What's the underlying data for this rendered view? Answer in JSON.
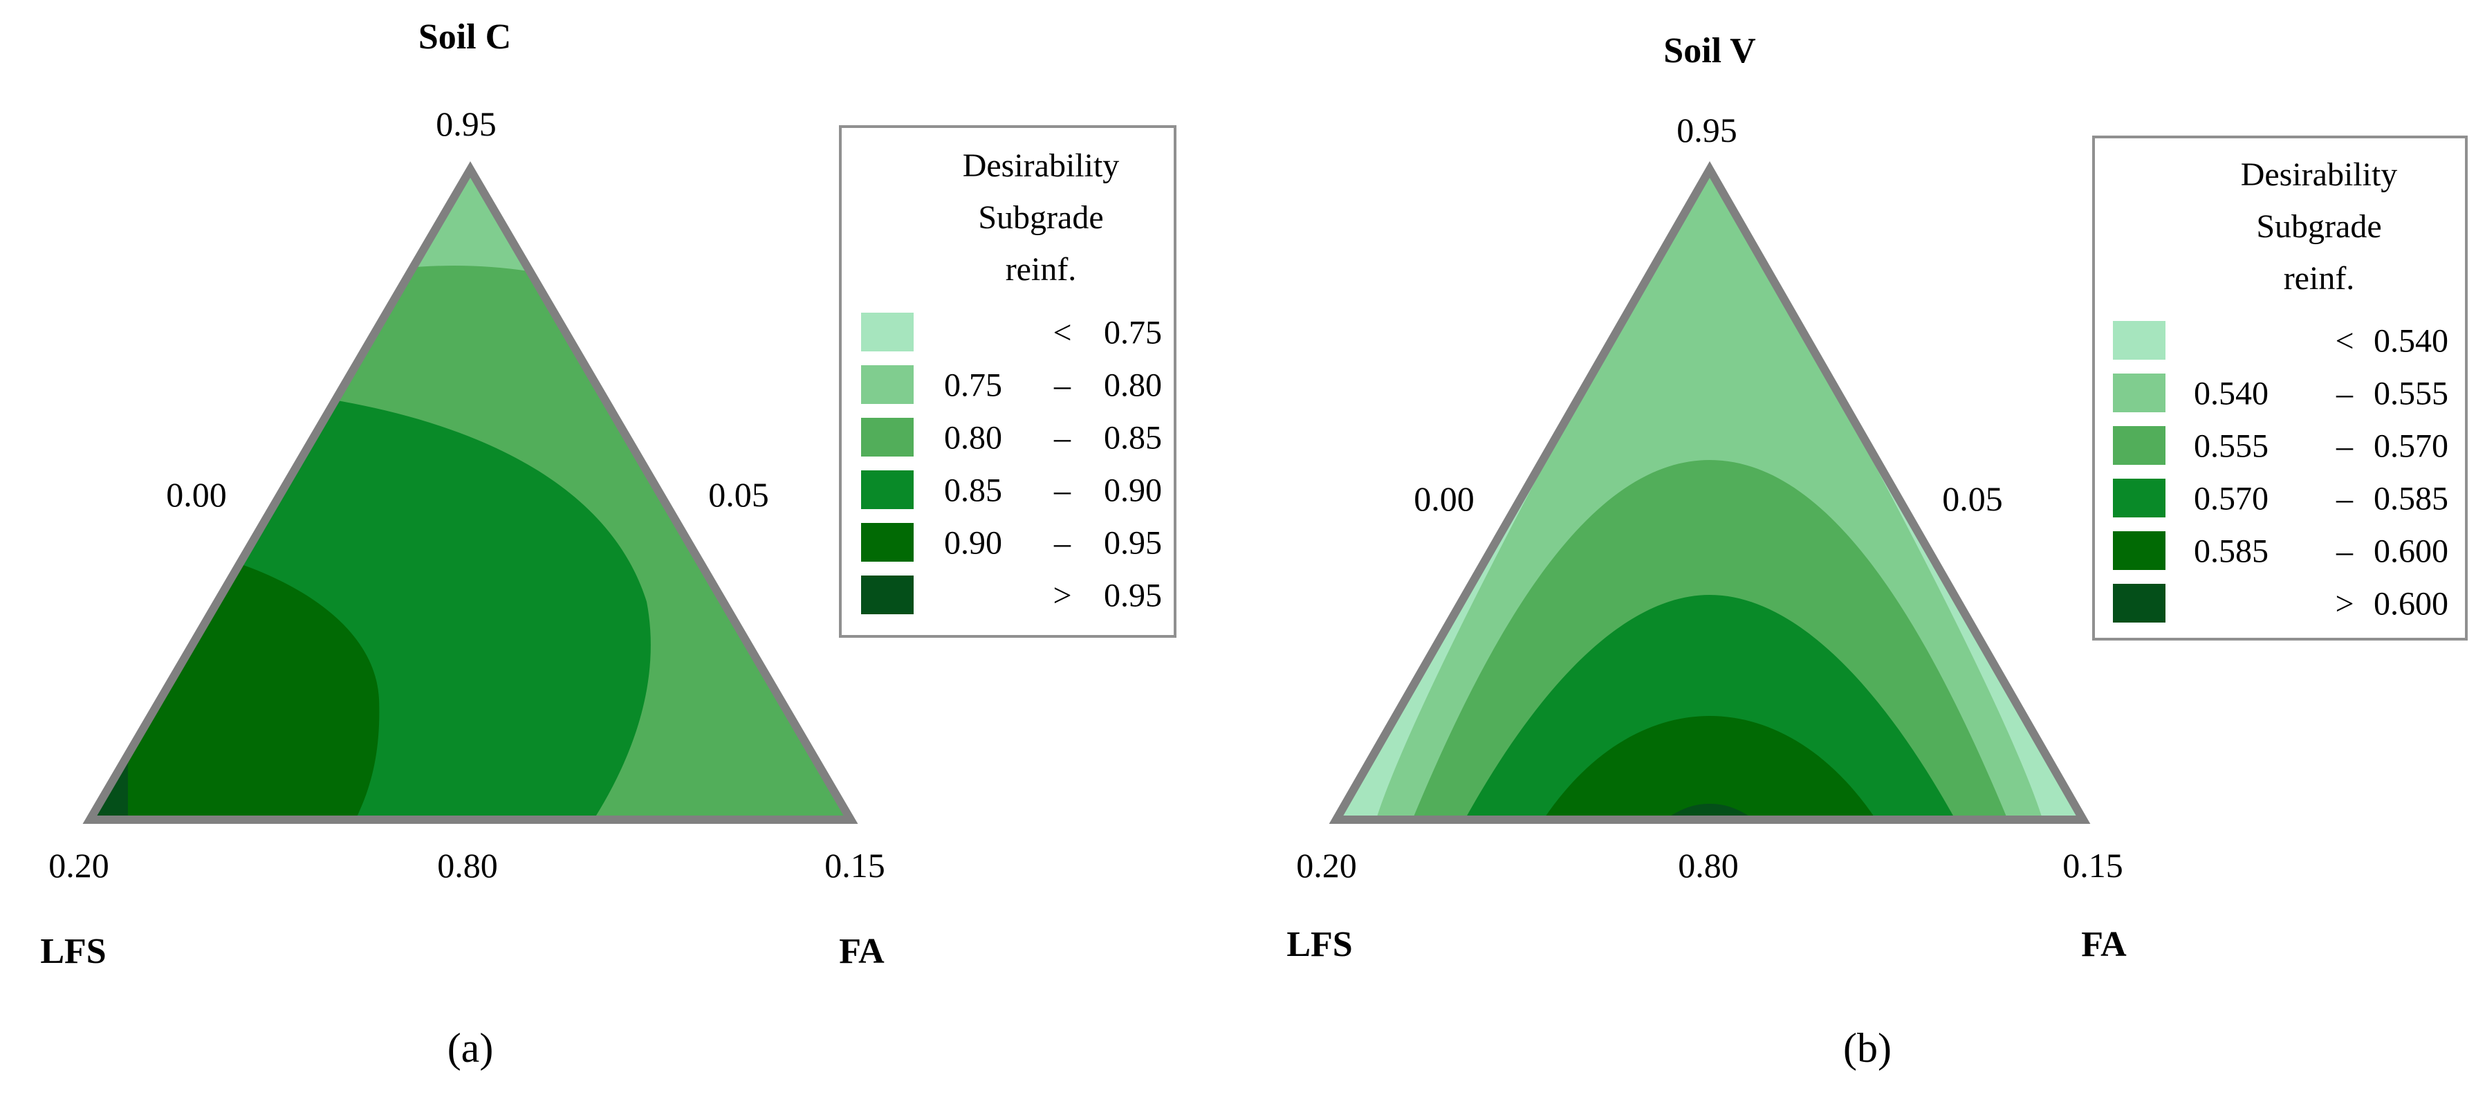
{
  "chart_data": [
    {
      "type": "ternary-contour",
      "panel_label": "(a)",
      "title": "Soil C",
      "components": [
        "LFS",
        "FA"
      ],
      "apex_value": "0.95",
      "left_edge_value": "0.00",
      "right_edge_value": "0.05",
      "bottom_left_value": "0.20",
      "bottom_mid_value": "0.80",
      "bottom_right_value": "0.15",
      "legend_title": [
        "Desirability",
        "Subgrade",
        "reinf."
      ],
      "legend": [
        {
          "lo": "",
          "sep": "<",
          "hi": "0.75",
          "color": "#a6e5be"
        },
        {
          "lo": "0.75",
          "sep": "–",
          "hi": "0.80",
          "color": "#80cd8f"
        },
        {
          "lo": "0.80",
          "sep": "–",
          "hi": "0.85",
          "color": "#52ae5a"
        },
        {
          "lo": "0.85",
          "sep": "–",
          "hi": "0.90",
          "color": "#098a28"
        },
        {
          "lo": "0.90",
          "sep": "–",
          "hi": "0.95",
          "color": "#016a04"
        },
        {
          "lo": "",
          "sep": ">",
          "hi": "0.95",
          "color": "#044f19"
        }
      ]
    },
    {
      "type": "ternary-contour",
      "panel_label": "(b)",
      "title": "Soil V",
      "components": [
        "LFS",
        "FA"
      ],
      "apex_value": "0.95",
      "left_edge_value": "0.00",
      "right_edge_value": "0.05",
      "bottom_left_value": "0.20",
      "bottom_mid_value": "0.80",
      "bottom_right_value": "0.15",
      "legend_title": [
        "Desirability",
        "Subgrade",
        "reinf."
      ],
      "legend": [
        {
          "lo": "",
          "sep": "<",
          "hi": "0.540",
          "color": "#a6e5be"
        },
        {
          "lo": "0.540",
          "sep": "–",
          "hi": "0.555",
          "color": "#80cd8f"
        },
        {
          "lo": "0.555",
          "sep": "–",
          "hi": "0.570",
          "color": "#52ae5a"
        },
        {
          "lo": "0.570",
          "sep": "–",
          "hi": "0.585",
          "color": "#098a28"
        },
        {
          "lo": "0.585",
          "sep": "–",
          "hi": "0.600",
          "color": "#016a04"
        },
        {
          "lo": "",
          "sep": ">",
          "hi": "0.600",
          "color": "#044f19"
        }
      ]
    }
  ]
}
